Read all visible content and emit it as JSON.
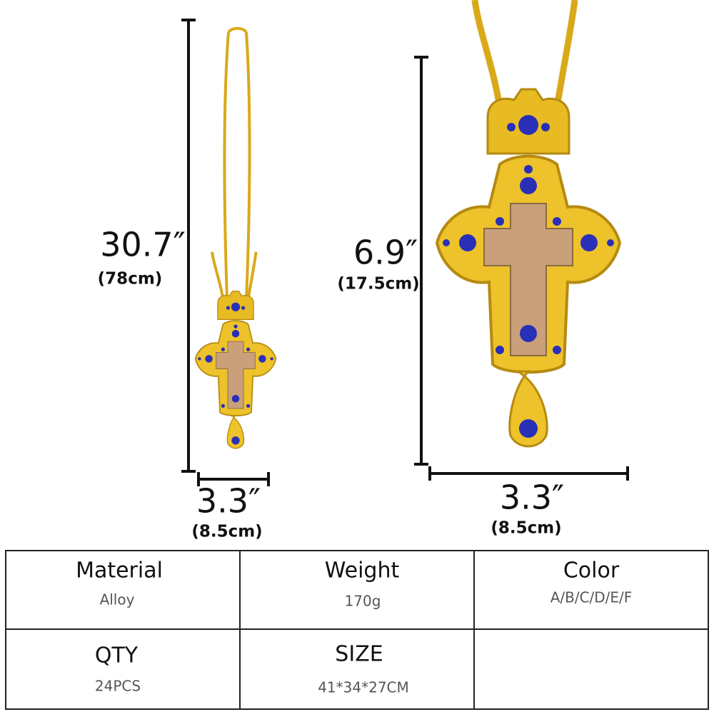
{
  "left": {
    "height": "30.7″",
    "height_cm": "(78cm)",
    "width": "3.3″",
    "width_cm": "(8.5cm)"
  },
  "right": {
    "height": "6.9″",
    "height_cm": "(17.5cm)",
    "width": "3.3″",
    "width_cm": "(8.5cm)"
  },
  "table": {
    "rows": [
      [
        {
          "label": "Material",
          "value": "Alloy"
        },
        {
          "label": "Weight",
          "value": "170g"
        },
        {
          "label": "Color",
          "value": "A/B/C/D/E/F"
        }
      ],
      [
        {
          "label": "QTY",
          "value": "24PCS"
        },
        {
          "label": "SIZE",
          "value": "41*34*27CM"
        }
      ]
    ]
  }
}
